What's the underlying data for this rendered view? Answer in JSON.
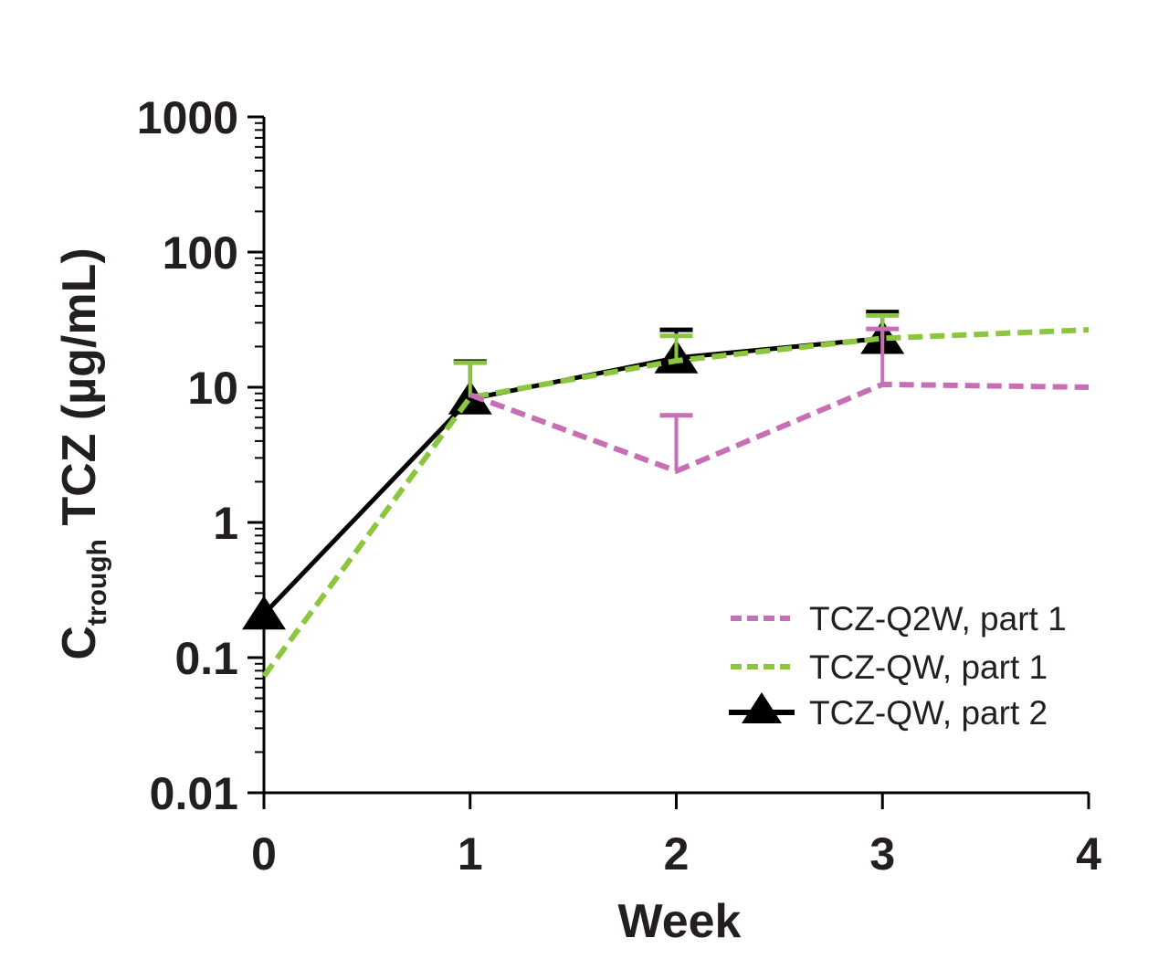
{
  "chart_data": {
    "type": "line",
    "title": "",
    "xlabel": "Week",
    "ylabel_main": "C",
    "ylabel_sub": "trough",
    "ylabel_rest": " TCZ (µg/mL)",
    "ylabel": "Ctrough TCZ (µg/mL)",
    "xlim": [
      0,
      4
    ],
    "ylim": [
      0.01,
      1000
    ],
    "yscale": "log",
    "x_ticks": [
      0,
      1,
      2,
      3,
      4
    ],
    "x_tick_labels": [
      "0",
      "1",
      "2",
      "3",
      "4"
    ],
    "y_ticks": [
      0.01,
      0.1,
      1,
      10,
      100,
      1000
    ],
    "y_tick_labels": [
      "0.01",
      "0.1",
      "1",
      "10",
      "100",
      "1000"
    ],
    "grid": false,
    "legend_position": "bottom-right",
    "series": [
      {
        "name": "TCZ-Q2W, part 1",
        "color": "#c86eb4",
        "style": "dashed",
        "marker": "none",
        "x": [
          1,
          2,
          3,
          4
        ],
        "y": [
          8.8,
          2.4,
          10.5,
          10
        ],
        "error_upper": [
          null,
          6.2,
          27,
          null
        ]
      },
      {
        "name": "TCZ-QW, part 1",
        "color": "#8cc63f",
        "style": "dashed",
        "marker": "none",
        "x": [
          0,
          1,
          2,
          3,
          4
        ],
        "y": [
          0.073,
          8.4,
          15.7,
          23,
          26.6
        ],
        "error_upper": [
          null,
          15.2,
          24,
          34,
          null
        ]
      },
      {
        "name": "TCZ-QW, part 2",
        "color": "#000000",
        "style": "solid",
        "marker": "triangle",
        "x": [
          0,
          1,
          2,
          3
        ],
        "y": [
          0.21,
          8.2,
          16.5,
          23
        ],
        "error_upper": [
          null,
          15.5,
          26.6,
          36
        ]
      }
    ]
  }
}
